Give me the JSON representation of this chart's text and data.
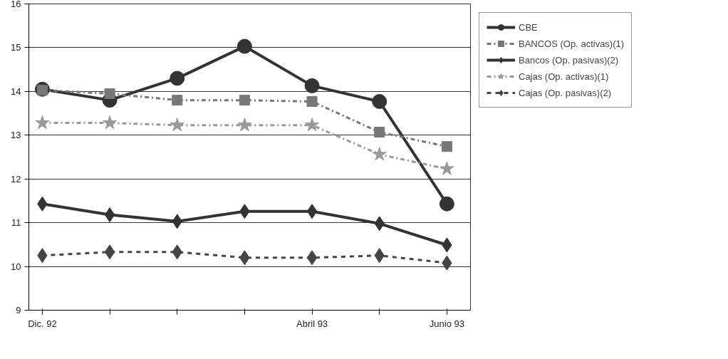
{
  "chart_data": {
    "type": "line",
    "categories": [
      "Dic. 92",
      null,
      null,
      null,
      "Abril 93",
      null,
      "Junio 93"
    ],
    "ylim": [
      9,
      16
    ],
    "yticks": [
      9,
      10,
      11,
      12,
      13,
      14,
      15,
      16
    ],
    "grid": "y",
    "legend": "right",
    "series": [
      {
        "name": "CBE",
        "color": "#333333",
        "marker": "circle",
        "line_style": "solid",
        "values": [
          14.05,
          13.8,
          14.3,
          15.03,
          14.13,
          13.77,
          11.43
        ]
      },
      {
        "name": "BANCOS (Op. activas)(1)",
        "color": "#777777",
        "marker": "square",
        "line_style": "dashdot",
        "values": [
          14.03,
          13.95,
          13.8,
          13.8,
          13.77,
          13.07,
          12.74
        ]
      },
      {
        "name": "Bancos (Op. pasivas)(2)",
        "color": "#333333",
        "marker": "diamond",
        "line_style": "solid",
        "values": [
          11.43,
          11.18,
          11.03,
          11.26,
          11.26,
          10.98,
          10.49
        ]
      },
      {
        "name": "Cajas (Op. activas)(1)",
        "color": "#999999",
        "marker": "star",
        "line_style": "dashdot",
        "values": [
          13.28,
          13.28,
          13.23,
          13.23,
          13.23,
          12.56,
          12.23
        ]
      },
      {
        "name": "Cajas (Op. pasivas)(2)",
        "color": "#444444",
        "marker": "diamond",
        "line_style": "dashed",
        "values": [
          10.25,
          10.33,
          10.33,
          10.2,
          10.2,
          10.25,
          10.08
        ]
      }
    ]
  }
}
